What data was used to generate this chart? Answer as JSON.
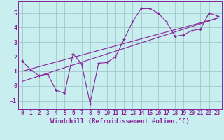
{
  "background_color": "#c8eef0",
  "grid_color": "#a0c8cc",
  "line_color": "#882299",
  "xlabel": "Windchill (Refroidissement éolien,°C)",
  "xlim": [
    -0.5,
    23.5
  ],
  "ylim": [
    -1.6,
    5.8
  ],
  "xticks": [
    0,
    1,
    2,
    3,
    4,
    5,
    6,
    7,
    8,
    9,
    10,
    11,
    12,
    13,
    14,
    15,
    16,
    17,
    18,
    19,
    20,
    21,
    22,
    23
  ],
  "yticks": [
    -1,
    0,
    1,
    2,
    3,
    4,
    5
  ],
  "series_x": [
    0,
    1,
    2,
    3,
    4,
    5,
    6,
    7,
    8,
    9,
    10,
    11,
    12,
    13,
    14,
    15,
    16,
    17,
    18,
    19,
    20,
    21,
    22,
    23
  ],
  "series_y": [
    1.7,
    1.1,
    0.7,
    0.8,
    -0.3,
    -0.5,
    2.2,
    1.5,
    -1.2,
    1.55,
    1.6,
    2.0,
    3.2,
    4.4,
    5.3,
    5.3,
    5.0,
    4.4,
    3.4,
    3.5,
    3.8,
    3.9,
    5.0,
    4.8
  ],
  "fit1_x": [
    0,
    23
  ],
  "fit1_y": [
    1.0,
    4.65
  ],
  "fit2_x": [
    0,
    23
  ],
  "fit2_y": [
    0.3,
    4.65
  ],
  "xlabel_fontsize": 6.5,
  "tick_fontsize": 5.5
}
